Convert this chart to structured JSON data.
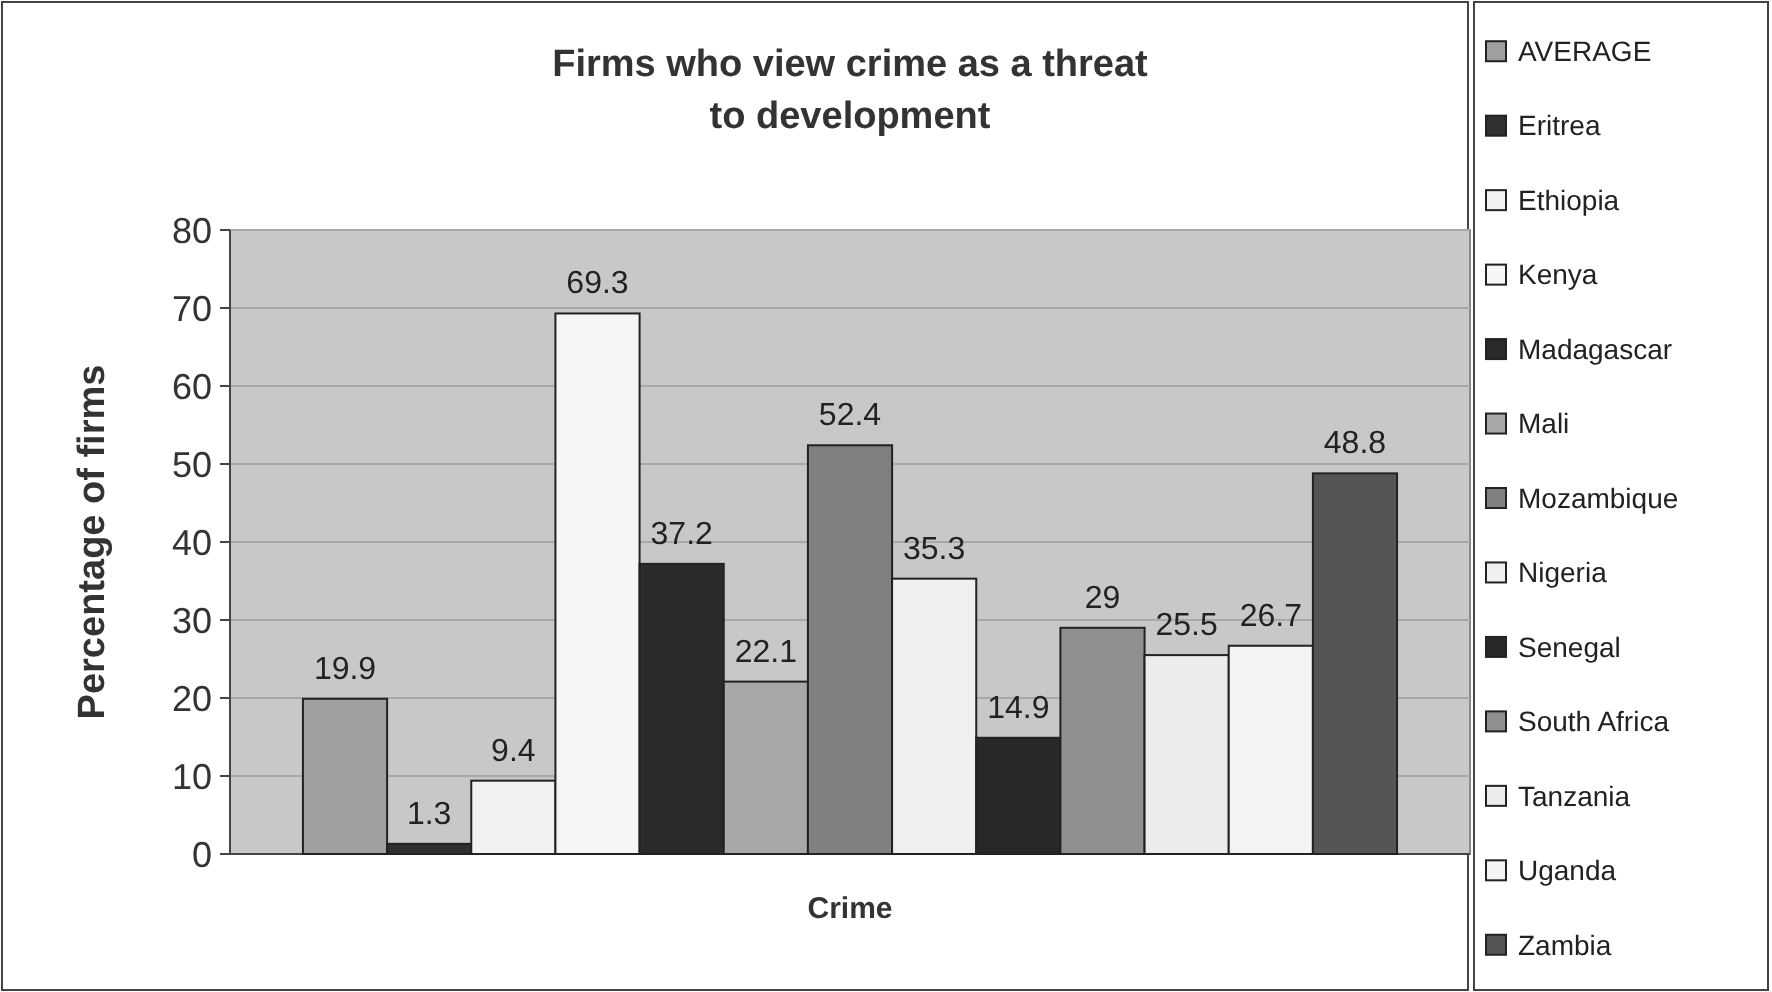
{
  "chart_data": {
    "type": "bar",
    "title": "Firms who view crime as a threat\nto development",
    "ylabel": "Percentage of firms",
    "categories": [
      "Crime"
    ],
    "series": [
      {
        "name": "AVERAGE",
        "color": "#a0a0a0",
        "values": [
          19.9
        ]
      },
      {
        "name": "Eritrea",
        "color": "#303030",
        "values": [
          1.3
        ]
      },
      {
        "name": "Ethiopia",
        "color": "#f2f2f2",
        "values": [
          9.4
        ]
      },
      {
        "name": "Kenya",
        "color": "#f6f6f6",
        "values": [
          69.3
        ]
      },
      {
        "name": "Madagascar",
        "color": "#2a2a2a",
        "values": [
          37.2
        ]
      },
      {
        "name": "Mali",
        "color": "#a8a8a8",
        "values": [
          22.1
        ]
      },
      {
        "name": "Mozambique",
        "color": "#808080",
        "values": [
          52.4
        ]
      },
      {
        "name": "Nigeria",
        "color": "#f0f0f0",
        "values": [
          35.3
        ]
      },
      {
        "name": "Senegal",
        "color": "#282828",
        "values": [
          14.9
        ]
      },
      {
        "name": "South Africa",
        "color": "#909090",
        "values": [
          29
        ]
      },
      {
        "name": "Tanzania",
        "color": "#ececec",
        "values": [
          25.5
        ]
      },
      {
        "name": "Uganda",
        "color": "#f3f3f3",
        "values": [
          26.7
        ]
      },
      {
        "name": "Zambia",
        "color": "#555555",
        "values": [
          48.8
        ]
      }
    ],
    "ylim": [
      0,
      80
    ],
    "yticks": [
      0,
      10,
      20,
      30,
      40,
      50,
      60,
      70,
      80
    ],
    "grid": "y",
    "legend": "right",
    "data_labels": true
  }
}
